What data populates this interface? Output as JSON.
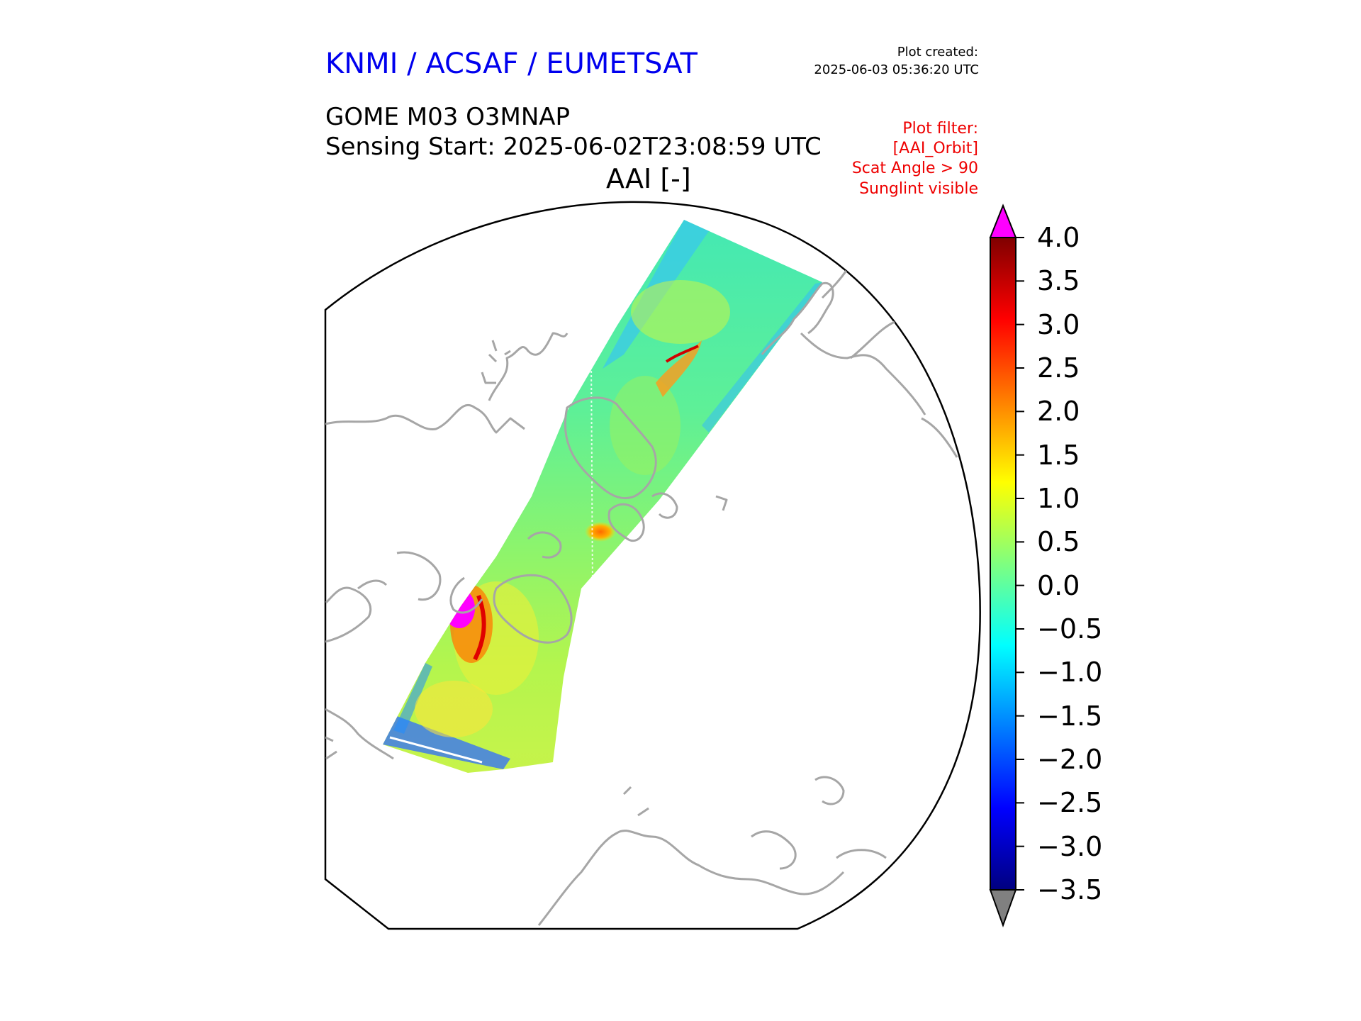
{
  "header": {
    "organization": "KNMI / ACSAF / EUMETSAT",
    "created_label": "Plot created:",
    "created_value": "2025-06-03 05:36:20 UTC",
    "product": "GOME M03 O3MNAP",
    "sensing_start": "Sensing Start: 2025-06-02T23:08:59 UTC",
    "variable": "AAI [-]"
  },
  "filter": {
    "lines": [
      "Plot filter:",
      "[AAI_Orbit]",
      "Scat Angle > 90",
      "Sunglint visible"
    ]
  },
  "map": {
    "projection": "north-polar-stereographic",
    "coastline_color": "#a6a6a6",
    "border_color": "#000000",
    "swath_background": "#35e6a8",
    "overflow_high_color": "#ff00ff",
    "overflow_low_color": "#808080"
  },
  "colorbar": {
    "min": -3.5,
    "max": 4.0,
    "ticks": [
      "4.0",
      "3.5",
      "3.0",
      "2.5",
      "2.0",
      "1.5",
      "1.0",
      "0.5",
      "0.0",
      "−0.5",
      "−1.0",
      "−1.5",
      "−2.0",
      "−2.5",
      "−3.0",
      "−3.5"
    ],
    "colors": [
      "#00007f",
      "#0000ff",
      "#007fff",
      "#00ffff",
      "#7fff7f",
      "#ffff00",
      "#ff7f00",
      "#ff0000",
      "#7f0000"
    ]
  }
}
